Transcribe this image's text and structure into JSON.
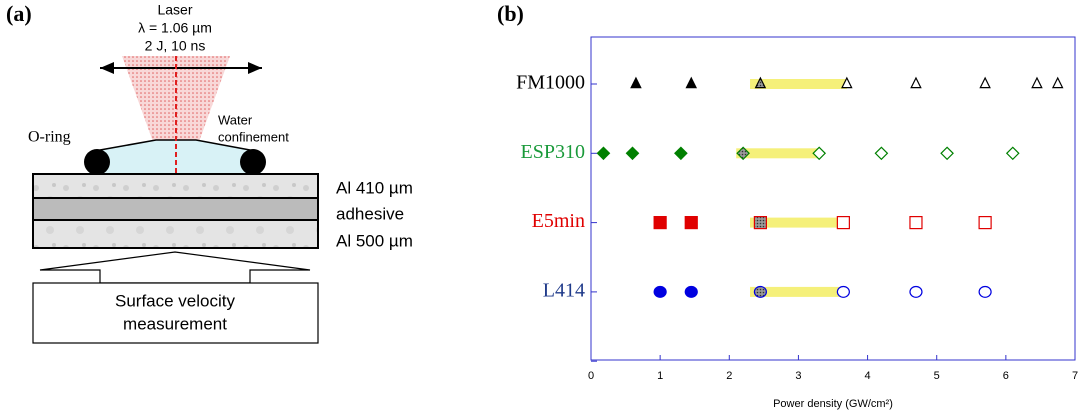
{
  "diagram": {
    "panel_label": "(a)",
    "laser": [
      "Laser",
      "λ = 1.06 µm",
      "2 J, 10 ns"
    ],
    "oring": "O-ring",
    "water": [
      "Water",
      "confinement"
    ],
    "layers": [
      "Al 410 µm",
      "adhesive",
      "Al 500 µm"
    ],
    "measurement": [
      "Surface velocity",
      "measurement"
    ]
  },
  "chart_data": {
    "type": "scatter",
    "panel_label": "(b)",
    "xlabel": "Power density (GW/cm²)",
    "xlim": [
      0,
      7
    ],
    "xticks": [
      0,
      1,
      2,
      3,
      4,
      5,
      6,
      7
    ],
    "band_color": "#f5f07a",
    "series": [
      {
        "name": "FM1000",
        "color": "#000000",
        "label_color": "#000000",
        "marker": "triangle",
        "filled": [
          0.65,
          1.45
        ],
        "mixed": [
          2.45
        ],
        "open": [
          3.7,
          4.7,
          5.7,
          6.45,
          6.75
        ],
        "band": [
          2.3,
          3.7
        ]
      },
      {
        "name": "ESP310",
        "color": "#008000",
        "label_color": "#1a9a3a",
        "marker": "diamond",
        "filled": [
          0.18,
          0.6,
          1.3
        ],
        "mixed": [
          2.2
        ],
        "open": [
          3.3,
          4.2,
          5.15,
          6.1
        ],
        "band": [
          2.1,
          3.3
        ]
      },
      {
        "name": "E5min",
        "color": "#e00000",
        "label_color": "#e00000",
        "marker": "square",
        "filled": [
          1.0,
          1.45
        ],
        "mixed": [
          2.45
        ],
        "open": [
          3.65,
          4.7,
          5.7
        ],
        "band": [
          2.3,
          3.65
        ]
      },
      {
        "name": "L414",
        "color": "#0000e0",
        "label_color": "#1f3a8a",
        "marker": "circle",
        "filled": [
          1.0,
          1.45
        ],
        "mixed": [
          2.45
        ],
        "open": [
          3.65,
          4.7,
          5.7
        ],
        "band": [
          2.3,
          3.65
        ]
      }
    ]
  }
}
